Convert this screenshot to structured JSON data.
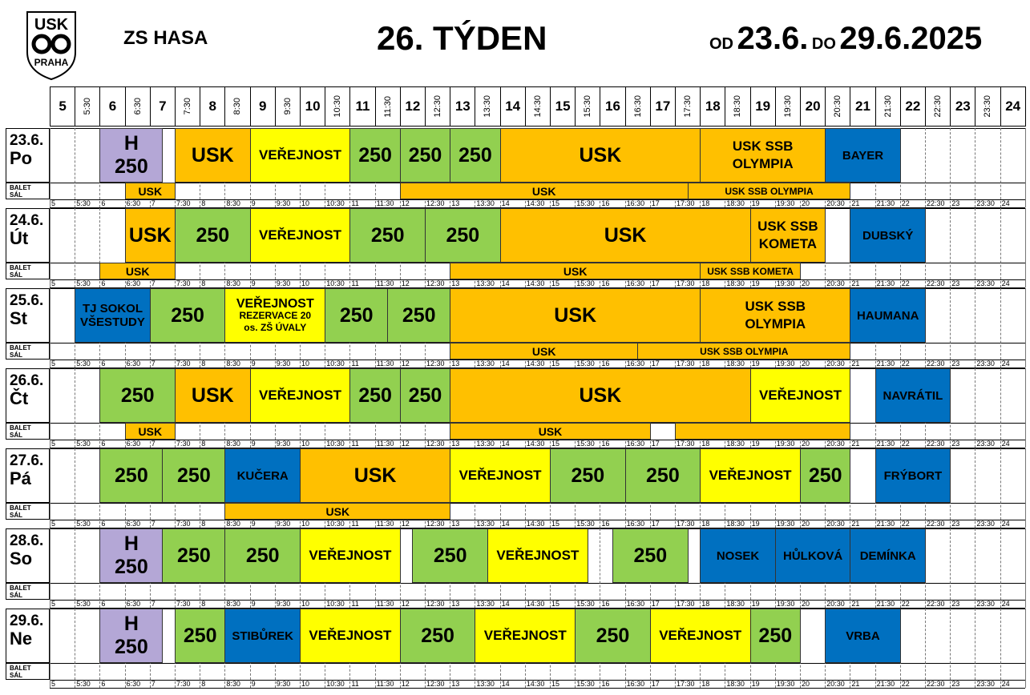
{
  "header": {
    "logo_lines": [
      "USK",
      "PRAHA"
    ],
    "venue": "ZS HASA",
    "week": "26. TÝDEN",
    "from_word": "OD",
    "from_date": "23.6.",
    "to_word": "DO",
    "to_date": "29.6.2025"
  },
  "time_header": [
    "5",
    "5:30",
    "6",
    "6:30",
    "7",
    "7:30",
    "8",
    "8:30",
    "9",
    "9:30",
    "10",
    "10:30",
    "11",
    "11:30",
    "12",
    "12:30",
    "13",
    "13:30",
    "14",
    "14:30",
    "15",
    "15:30",
    "16",
    "16:30",
    "17",
    "17:30",
    "18",
    "18:30",
    "19",
    "19:30",
    "20",
    "20:30",
    "21",
    "21:30",
    "22",
    "22:30",
    "23",
    "23:30",
    "24"
  ],
  "balet_label": [
    "BALET",
    "SÁL"
  ],
  "colors": {
    "orange": "#FFC000",
    "green": "#92D050",
    "yellow": "#FFFF00",
    "blue": "#0070C0",
    "purple": "#B4A7D6"
  },
  "days": [
    {
      "date": "23.6.",
      "day": "Po",
      "ice": [
        {
          "start": 2,
          "end": 4.5,
          "lines": [
            "H",
            "250"
          ],
          "color": "purple"
        },
        {
          "start": 5,
          "end": 8,
          "lines": [
            "USK"
          ],
          "color": "orange"
        },
        {
          "start": 8,
          "end": 12,
          "lines": [
            "VEŘEJNOST"
          ],
          "color": "yellow"
        },
        {
          "start": 12,
          "end": 14,
          "lines": [
            "250"
          ],
          "color": "green"
        },
        {
          "start": 14,
          "end": 16,
          "lines": [
            "250"
          ],
          "color": "green"
        },
        {
          "start": 16,
          "end": 18,
          "lines": [
            "250"
          ],
          "color": "green"
        },
        {
          "start": 18,
          "end": 26,
          "lines": [
            "USK"
          ],
          "color": "orange"
        },
        {
          "start": 26,
          "end": 31,
          "lines": [
            "USK SSB",
            "OLYMPIA"
          ],
          "color": "orange"
        },
        {
          "start": 31,
          "end": 34,
          "lines": [
            "BAYER"
          ],
          "color": "blue"
        }
      ],
      "balet": [
        {
          "start": 3,
          "end": 5,
          "label": "USK",
          "color": "orange"
        },
        {
          "start": 14,
          "end": 25.5,
          "label": "USK",
          "color": "orange"
        },
        {
          "start": 25.5,
          "end": 32,
          "label": "USK SSB OLYMPIA",
          "color": "orange"
        }
      ]
    },
    {
      "date": "24.6.",
      "day": "Út",
      "ice": [
        {
          "start": 3,
          "end": 5,
          "lines": [
            "USK"
          ],
          "color": "orange"
        },
        {
          "start": 5,
          "end": 8,
          "lines": [
            "250"
          ],
          "color": "green"
        },
        {
          "start": 8,
          "end": 12,
          "lines": [
            "VEŘEJNOST"
          ],
          "color": "yellow"
        },
        {
          "start": 12,
          "end": 15,
          "lines": [
            "250"
          ],
          "color": "green"
        },
        {
          "start": 15,
          "end": 18,
          "lines": [
            "250"
          ],
          "color": "green"
        },
        {
          "start": 18,
          "end": 28,
          "lines": [
            "USK"
          ],
          "color": "orange"
        },
        {
          "start": 28,
          "end": 31,
          "lines": [
            "USK SSB",
            "KOMETA"
          ],
          "color": "orange"
        },
        {
          "start": 32,
          "end": 35,
          "lines": [
            "DUBSKÝ"
          ],
          "color": "blue"
        }
      ],
      "balet": [
        {
          "start": 2,
          "end": 5,
          "label": "USK",
          "color": "orange"
        },
        {
          "start": 16,
          "end": 26,
          "label": "USK",
          "color": "orange"
        },
        {
          "start": 26,
          "end": 30,
          "label": "USK SSB KOMETA",
          "color": "orange"
        }
      ]
    },
    {
      "date": "25.6.",
      "day": "St",
      "ice": [
        {
          "start": 1,
          "end": 4,
          "lines": [
            "TJ SOKOL",
            "VŠESTUDY"
          ],
          "color": "blue"
        },
        {
          "start": 4,
          "end": 7,
          "lines": [
            "250"
          ],
          "color": "green"
        },
        {
          "start": 7,
          "end": 11,
          "lines": [
            "VEŘEJNOST",
            "REZERVACE 20",
            "os. ZŠ ÚVALY"
          ],
          "color": "yellow"
        },
        {
          "start": 11,
          "end": 13.5,
          "lines": [
            "250"
          ],
          "color": "green"
        },
        {
          "start": 13.5,
          "end": 16,
          "lines": [
            "250"
          ],
          "color": "green"
        },
        {
          "start": 16,
          "end": 26,
          "lines": [
            "USK"
          ],
          "color": "orange"
        },
        {
          "start": 26,
          "end": 32,
          "lines": [
            "USK SSB",
            "OLYMPIA"
          ],
          "color": "orange"
        },
        {
          "start": 32,
          "end": 35,
          "lines": [
            "HAUMANA"
          ],
          "color": "blue"
        }
      ],
      "balet": [
        {
          "start": 16,
          "end": 23.5,
          "label": "USK",
          "color": "orange"
        },
        {
          "start": 23.5,
          "end": 32,
          "label": "USK SSB OLYMPIA",
          "color": "orange"
        }
      ]
    },
    {
      "date": "26.6.",
      "day": "Čt",
      "ice": [
        {
          "start": 2,
          "end": 5,
          "lines": [
            "250"
          ],
          "color": "green"
        },
        {
          "start": 5,
          "end": 8,
          "lines": [
            "USK"
          ],
          "color": "orange"
        },
        {
          "start": 8,
          "end": 12,
          "lines": [
            "VEŘEJNOST"
          ],
          "color": "yellow"
        },
        {
          "start": 12,
          "end": 14,
          "lines": [
            "250"
          ],
          "color": "green"
        },
        {
          "start": 14,
          "end": 16,
          "lines": [
            "250"
          ],
          "color": "green"
        },
        {
          "start": 16,
          "end": 28,
          "lines": [
            "USK"
          ],
          "color": "orange"
        },
        {
          "start": 28,
          "end": 32,
          "lines": [
            "VEŘEJNOST"
          ],
          "color": "yellow"
        },
        {
          "start": 33,
          "end": 36,
          "lines": [
            "NAVRÁTIL"
          ],
          "color": "blue"
        }
      ],
      "balet": [
        {
          "start": 3,
          "end": 5,
          "label": "USK",
          "color": "orange"
        },
        {
          "start": 16,
          "end": 24,
          "label": "USK",
          "color": "orange"
        },
        {
          "start": 25,
          "end": 32,
          "label": "",
          "color": "orange"
        }
      ]
    },
    {
      "date": "27.6.",
      "day": "Pá",
      "ice": [
        {
          "start": 2,
          "end": 4.5,
          "lines": [
            "250"
          ],
          "color": "green"
        },
        {
          "start": 4.5,
          "end": 7,
          "lines": [
            "250"
          ],
          "color": "green"
        },
        {
          "start": 7,
          "end": 10,
          "lines": [
            "KUČERA"
          ],
          "color": "blue"
        },
        {
          "start": 10,
          "end": 16,
          "lines": [
            "USK"
          ],
          "color": "orange"
        },
        {
          "start": 16,
          "end": 20,
          "lines": [
            "VEŘEJNOST"
          ],
          "color": "yellow"
        },
        {
          "start": 20,
          "end": 23,
          "lines": [
            "250"
          ],
          "color": "green"
        },
        {
          "start": 23,
          "end": 26,
          "lines": [
            "250"
          ],
          "color": "green"
        },
        {
          "start": 26,
          "end": 30,
          "lines": [
            "VEŘEJNOST"
          ],
          "color": "yellow"
        },
        {
          "start": 30,
          "end": 32,
          "lines": [
            "250"
          ],
          "color": "green"
        },
        {
          "start": 33,
          "end": 36,
          "lines": [
            "FRÝBORT"
          ],
          "color": "blue"
        }
      ],
      "balet": [
        {
          "start": 7,
          "end": 16,
          "label": "USK",
          "color": "orange"
        }
      ]
    },
    {
      "date": "28.6.",
      "day": "So",
      "ice": [
        {
          "start": 2,
          "end": 4.5,
          "lines": [
            "H",
            "250"
          ],
          "color": "purple"
        },
        {
          "start": 4.5,
          "end": 7,
          "lines": [
            "250"
          ],
          "color": "green"
        },
        {
          "start": 7,
          "end": 10,
          "lines": [
            "250"
          ],
          "color": "green"
        },
        {
          "start": 10,
          "end": 14,
          "lines": [
            "VEŘEJNOST"
          ],
          "color": "yellow"
        },
        {
          "start": 14.5,
          "end": 17.5,
          "lines": [
            "250"
          ],
          "color": "green"
        },
        {
          "start": 17.5,
          "end": 21.5,
          "lines": [
            "VEŘEJNOST"
          ],
          "color": "yellow"
        },
        {
          "start": 22.5,
          "end": 25.5,
          "lines": [
            "250"
          ],
          "color": "green"
        },
        {
          "start": 26,
          "end": 29,
          "lines": [
            "NOSEK"
          ],
          "color": "blue"
        },
        {
          "start": 29,
          "end": 32,
          "lines": [
            "HŮLKOVÁ"
          ],
          "color": "blue"
        },
        {
          "start": 32,
          "end": 35,
          "lines": [
            "DEMÍNKA"
          ],
          "color": "blue"
        }
      ],
      "balet": []
    },
    {
      "date": "29.6.",
      "day": "Ne",
      "ice": [
        {
          "start": 2,
          "end": 4.5,
          "lines": [
            "H",
            "250"
          ],
          "color": "purple"
        },
        {
          "start": 5,
          "end": 7,
          "lines": [
            "250"
          ],
          "color": "green"
        },
        {
          "start": 7,
          "end": 10,
          "lines": [
            "STIBŮREK"
          ],
          "color": "blue"
        },
        {
          "start": 10,
          "end": 14,
          "lines": [
            "VEŘEJNOST"
          ],
          "color": "yellow"
        },
        {
          "start": 14,
          "end": 17,
          "lines": [
            "250"
          ],
          "color": "green"
        },
        {
          "start": 17,
          "end": 21,
          "lines": [
            "VEŘEJNOST"
          ],
          "color": "yellow"
        },
        {
          "start": 21,
          "end": 24,
          "lines": [
            "250"
          ],
          "color": "green"
        },
        {
          "start": 24,
          "end": 28,
          "lines": [
            "VEŘEJNOST"
          ],
          "color": "yellow"
        },
        {
          "start": 28,
          "end": 30,
          "lines": [
            "250"
          ],
          "color": "green"
        },
        {
          "start": 31,
          "end": 34,
          "lines": [
            "VRBA"
          ],
          "color": "blue"
        }
      ],
      "balet": []
    }
  ]
}
